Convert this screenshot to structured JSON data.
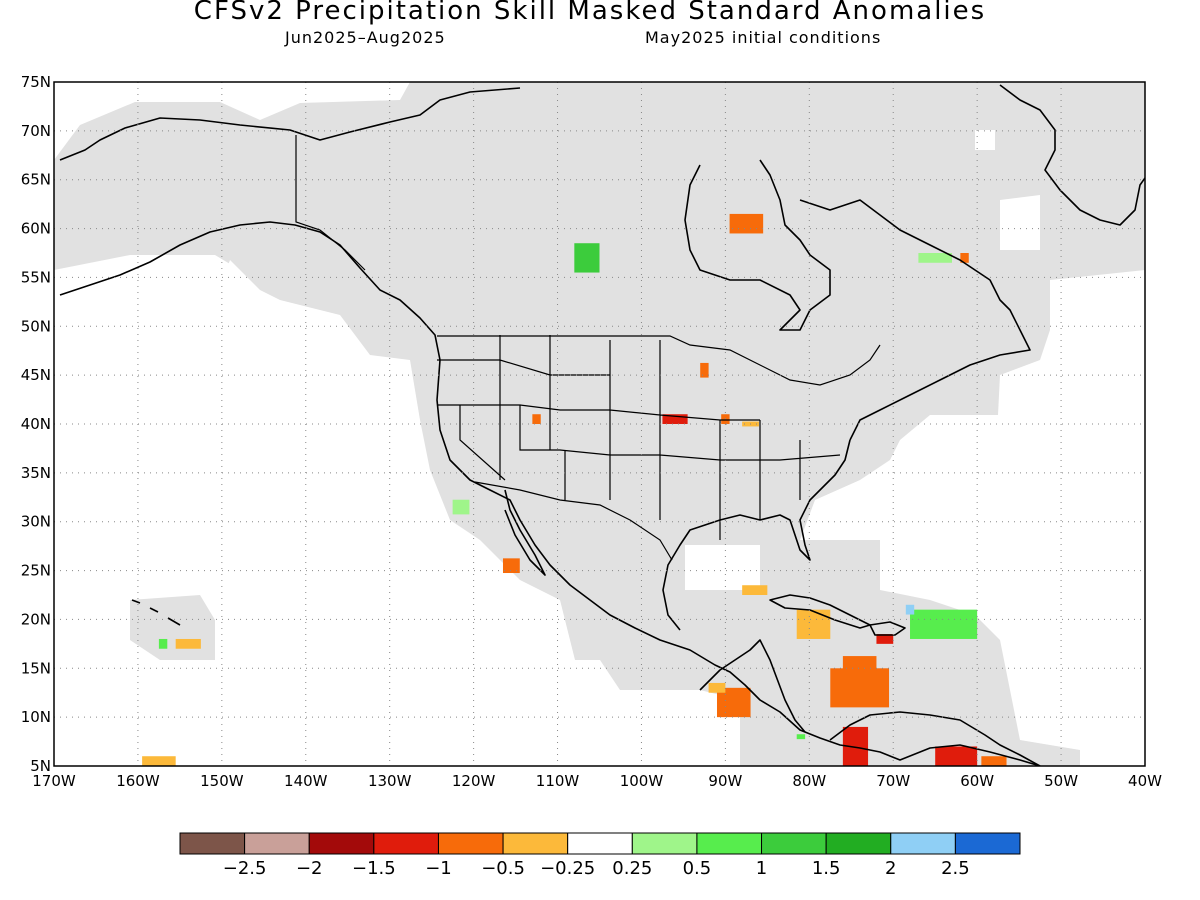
{
  "title": "CFSv2 Precipitation Skill Masked Standard Anomalies",
  "subtitle_left": "Jun2025–Aug2025",
  "subtitle_right": "May2025 initial conditions",
  "map": {
    "projection": "cylindrical",
    "lon_range": [
      -170,
      -40
    ],
    "lat_range": [
      5,
      75
    ],
    "masked_color": "#e1e1e1",
    "grid": "dotted",
    "lat_labels": [
      "75N",
      "70N",
      "65N",
      "60N",
      "55N",
      "50N",
      "45N",
      "40N",
      "35N",
      "30N",
      "25N",
      "20N",
      "15N",
      "10N",
      "5N"
    ],
    "lon_labels": [
      "170W",
      "160W",
      "150W",
      "140W",
      "130W",
      "120W",
      "110W",
      "100W",
      "90W",
      "80W",
      "70W",
      "60W",
      "50W",
      "40W"
    ]
  },
  "colorbar": {
    "colors": [
      "#7d5549",
      "#c9a099",
      "#a30a0a",
      "#e01c0c",
      "#f76b0a",
      "#fcb93a",
      "#ffffff",
      "#9ff58a",
      "#57ed4d",
      "#3ccc3c",
      "#22ad22",
      "#8fcff5",
      "#1b69d4"
    ],
    "labels": [
      "−2.5",
      "−2",
      "−1.5",
      "−1",
      "−0.5",
      "−0.25",
      "0.25",
      "0.5",
      "1",
      "1.5",
      "2",
      "2.5"
    ]
  },
  "anomalies": [
    {
      "name": "hudson-bay-east",
      "lon": -87.5,
      "lat": 60.5,
      "w": 4,
      "h": 2,
      "color": "#f76b0a"
    },
    {
      "name": "saskatchewan",
      "lon": -106.5,
      "lat": 57,
      "w": 3,
      "h": 3,
      "color": "#3ccc3c"
    },
    {
      "name": "labrador",
      "lon": -65,
      "lat": 57,
      "w": 4,
      "h": 1,
      "color": "#9ff58a"
    },
    {
      "name": "labrador-2",
      "lon": -61.5,
      "lat": 57,
      "w": 1,
      "h": 1,
      "color": "#f76b0a"
    },
    {
      "name": "minnesota",
      "lon": -92.5,
      "lat": 45.5,
      "w": 1,
      "h": 1.5,
      "color": "#f76b0a"
    },
    {
      "name": "nebraska",
      "lon": -96,
      "lat": 40.5,
      "w": 3,
      "h": 1,
      "color": "#e01c0c"
    },
    {
      "name": "illinois",
      "lon": -90,
      "lat": 40.5,
      "w": 1,
      "h": 1,
      "color": "#f76b0a"
    },
    {
      "name": "utah",
      "lon": -112.5,
      "lat": 40.5,
      "w": 1,
      "h": 1,
      "color": "#f76b0a"
    },
    {
      "name": "indiana",
      "lon": -87,
      "lat": 40,
      "w": 2,
      "h": 0.5,
      "color": "#fcb93a"
    },
    {
      "name": "pacific-baja",
      "lon": -121.5,
      "lat": 31.5,
      "w": 2,
      "h": 1.5,
      "color": "#9ff58a"
    },
    {
      "name": "baja-south",
      "lon": -115.5,
      "lat": 25.5,
      "w": 2,
      "h": 1.5,
      "color": "#f76b0a"
    },
    {
      "name": "gulf-south",
      "lon": -86.5,
      "lat": 23,
      "w": 3,
      "h": 1,
      "color": "#fcb93a"
    },
    {
      "name": "caribbean-cuba",
      "lon": -79.5,
      "lat": 19.5,
      "w": 4,
      "h": 3,
      "color": "#fcb93a"
    },
    {
      "name": "jamaica",
      "lon": -71,
      "lat": 18,
      "w": 2,
      "h": 1,
      "color": "#e01c0c"
    },
    {
      "name": "antilles-green",
      "lon": -64,
      "lat": 19.5,
      "w": 8,
      "h": 3,
      "color": "#57ed4d"
    },
    {
      "name": "antilles-blue",
      "lon": -68,
      "lat": 21,
      "w": 1,
      "h": 1,
      "color": "#8fcff5"
    },
    {
      "name": "caribbean-sea",
      "lon": -74,
      "lat": 13,
      "w": 7,
      "h": 4,
      "color": "#f76b0a"
    },
    {
      "name": "caribbean-sea-2",
      "lon": -74,
      "lat": 15.5,
      "w": 4,
      "h": 1.5,
      "color": "#f76b0a"
    },
    {
      "name": "colombia",
      "lon": -74.5,
      "lat": 7,
      "w": 3,
      "h": 4,
      "color": "#e01c0c"
    },
    {
      "name": "venezuela",
      "lon": -62.5,
      "lat": 6,
      "w": 5,
      "h": 2,
      "color": "#e01c0c"
    },
    {
      "name": "venezuela-2",
      "lon": -58,
      "lat": 5.5,
      "w": 3,
      "h": 1,
      "color": "#f76b0a"
    },
    {
      "name": "guatemala",
      "lon": -89,
      "lat": 11.5,
      "w": 4,
      "h": 3,
      "color": "#f76b0a"
    },
    {
      "name": "guatemala-2",
      "lon": -91,
      "lat": 13,
      "w": 2,
      "h": 1,
      "color": "#fcb93a"
    },
    {
      "name": "panama",
      "lon": -81,
      "lat": 8,
      "w": 1,
      "h": 0.5,
      "color": "#57ed4d"
    },
    {
      "name": "hawaii-west",
      "lon": -154,
      "lat": 17.5,
      "w": 3,
      "h": 1,
      "color": "#fcb93a"
    },
    {
      "name": "hawaii-green",
      "lon": -157,
      "lat": 17.5,
      "w": 1,
      "h": 1,
      "color": "#57ed4d"
    },
    {
      "name": "hawaii-south",
      "lon": -157.5,
      "lat": 5.5,
      "w": 4,
      "h": 1,
      "color": "#fcb93a"
    }
  ]
}
